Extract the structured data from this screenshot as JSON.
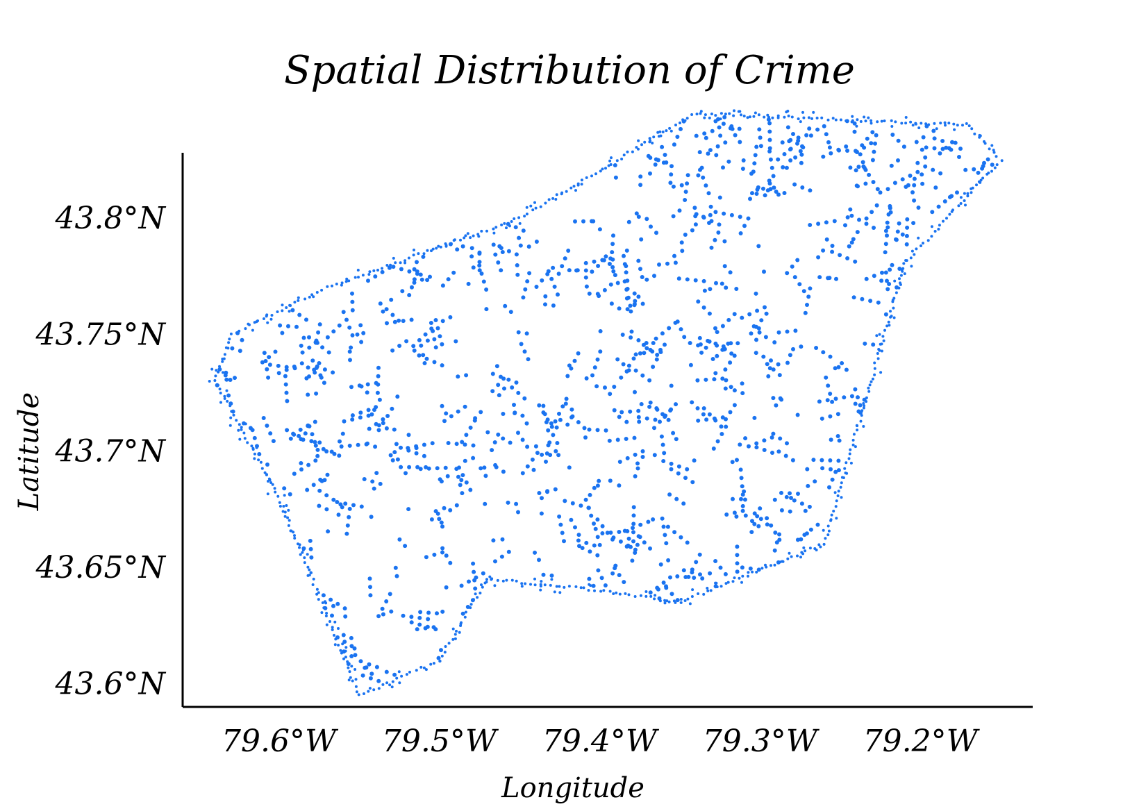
{
  "chart_data": {
    "type": "scatter",
    "title": "Spatial Distribution of Crime",
    "xlabel": "Longitude",
    "ylabel": "Latitude",
    "x_ticks": [
      "79.6°W",
      "79.5°W",
      "79.4°W",
      "79.3°W",
      "79.2°W"
    ],
    "y_ticks": [
      "43.8°N",
      "43.75°N",
      "43.7°N",
      "43.65°N",
      "43.6°N"
    ],
    "xlim": [
      -79.66,
      -79.13
    ],
    "ylim": [
      43.59,
      43.84
    ],
    "grid": false,
    "legend": "none",
    "point_color": "#1a73f0",
    "boundary": [
      [
        -79.63,
        43.75
      ],
      [
        -79.57,
        43.77
      ],
      [
        -79.45,
        43.8
      ],
      [
        -79.34,
        43.845
      ],
      [
        -79.17,
        43.84
      ],
      [
        -79.15,
        43.825
      ],
      [
        -79.21,
        43.78
      ],
      [
        -79.26,
        43.66
      ],
      [
        -79.35,
        43.635
      ],
      [
        -79.4,
        43.64
      ],
      [
        -79.47,
        43.645
      ],
      [
        -79.5,
        43.61
      ],
      [
        -79.55,
        43.595
      ],
      [
        -79.6,
        43.68
      ],
      [
        -79.64,
        43.73
      ]
    ],
    "point_count": 1400
  }
}
